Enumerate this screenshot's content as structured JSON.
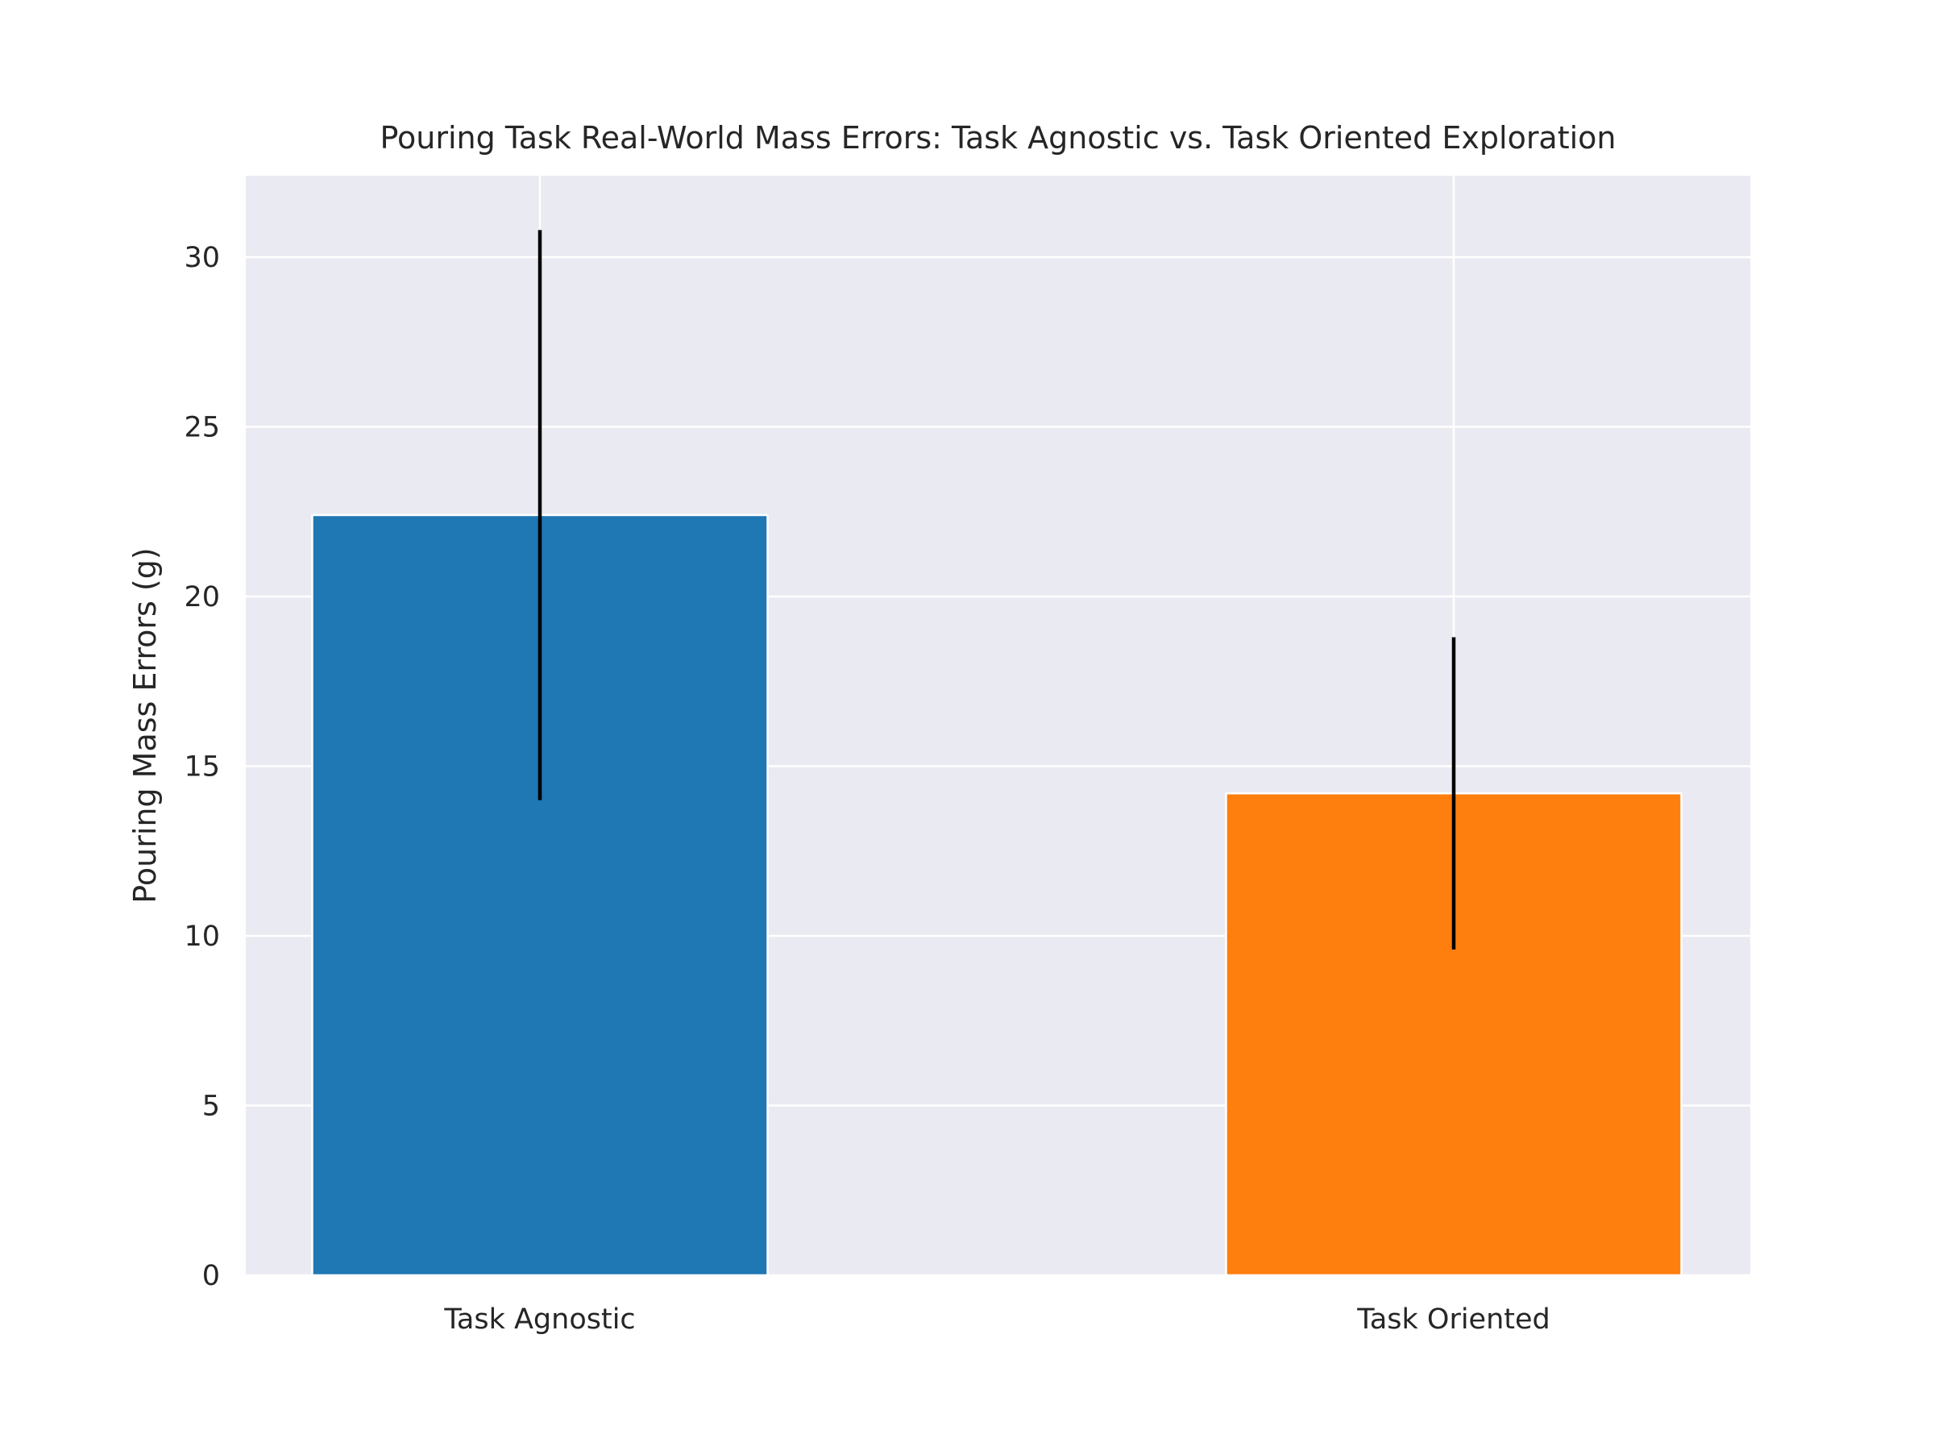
{
  "chart_data": {
    "type": "bar",
    "title": "Pouring Task Real-World Mass Errors: Task Agnostic vs. Task Oriented Exploration",
    "xlabel": "",
    "ylabel": "Pouring Mass Errors (g)",
    "categories": [
      "Task Agnostic",
      "Task Oriented"
    ],
    "values": [
      22.4,
      14.2
    ],
    "error_low": [
      14.0,
      9.6
    ],
    "error_high": [
      30.8,
      18.8
    ],
    "ylim": [
      0,
      32.4
    ],
    "yticks": [
      0,
      5,
      10,
      15,
      20,
      25,
      30
    ],
    "grid": true,
    "legend": "none",
    "colors": {
      "bars": [
        "#1f77b4",
        "#ff7f0e"
      ],
      "plot_background": "#eaeaf2",
      "grid": "#ffffff",
      "error_bar": "#000000"
    }
  }
}
